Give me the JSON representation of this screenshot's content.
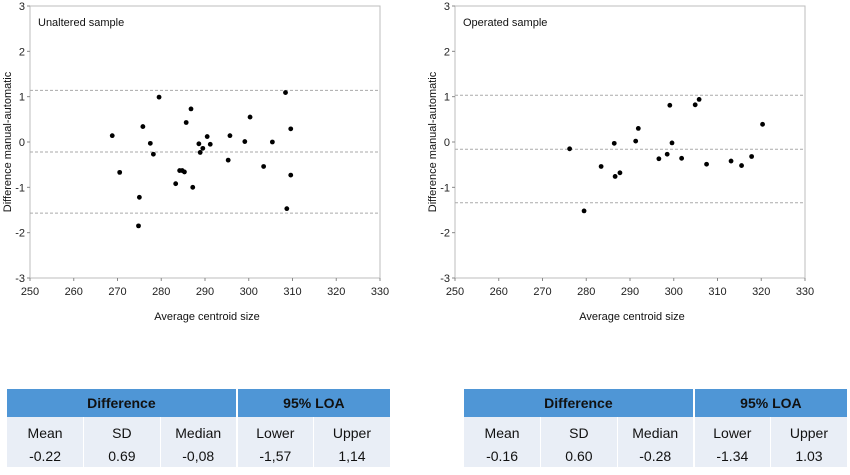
{
  "chart_data": [
    {
      "type": "scatter",
      "title": "Unaltered sample",
      "xlabel": "Average centroid size",
      "ylabel": "Difference manual-automatic",
      "xlim": [
        250,
        330
      ],
      "ylim": [
        -3,
        3
      ],
      "x_ticks": [
        250,
        260,
        270,
        280,
        290,
        300,
        310,
        320,
        330
      ],
      "y_ticks": [
        3,
        2,
        1,
        0,
        -1,
        -2,
        -3
      ],
      "reference_lines": [
        1.14,
        -0.22,
        -1.57
      ],
      "points": [
        [
          268.8,
          0.14
        ],
        [
          270.5,
          -0.67
        ],
        [
          274.8,
          -1.85
        ],
        [
          275.0,
          -1.22
        ],
        [
          275.8,
          0.34
        ],
        [
          277.5,
          -0.03
        ],
        [
          278.2,
          -0.27
        ],
        [
          279.5,
          0.99
        ],
        [
          283.3,
          -0.92
        ],
        [
          284.2,
          -0.63
        ],
        [
          284.8,
          -0.63
        ],
        [
          285.3,
          -0.66
        ],
        [
          285.7,
          0.43
        ],
        [
          286.8,
          0.73
        ],
        [
          287.2,
          -1.0
        ],
        [
          288.6,
          -0.04
        ],
        [
          288.9,
          -0.23
        ],
        [
          289.5,
          -0.14
        ],
        [
          290.5,
          0.12
        ],
        [
          291.2,
          -0.05
        ],
        [
          295.3,
          -0.4
        ],
        [
          295.7,
          0.14
        ],
        [
          299.1,
          0.01
        ],
        [
          300.3,
          0.55
        ],
        [
          303.4,
          -0.54
        ],
        [
          305.4,
          0.0
        ],
        [
          308.4,
          1.09
        ],
        [
          308.7,
          -1.47
        ],
        [
          309.6,
          0.29
        ],
        [
          309.6,
          -0.73
        ]
      ]
    },
    {
      "type": "scatter",
      "title": "Operated sample",
      "xlabel": "Average centroid size",
      "ylabel": "Difference manual-automatic",
      "xlim": [
        250,
        330
      ],
      "ylim": [
        -3,
        3
      ],
      "x_ticks": [
        250,
        260,
        270,
        280,
        290,
        300,
        310,
        320,
        330
      ],
      "y_ticks": [
        3,
        2,
        1,
        0,
        -1,
        -2,
        -3
      ],
      "reference_lines": [
        1.03,
        -0.16,
        -1.34
      ],
      "points": [
        [
          276.2,
          -0.15
        ],
        [
          279.5,
          -1.52
        ],
        [
          283.4,
          -0.54
        ],
        [
          286.4,
          -0.03
        ],
        [
          286.6,
          -0.76
        ],
        [
          287.7,
          -0.68
        ],
        [
          291.3,
          0.02
        ],
        [
          291.9,
          0.3
        ],
        [
          296.6,
          -0.37
        ],
        [
          298.5,
          -0.27
        ],
        [
          299.1,
          0.81
        ],
        [
          299.6,
          -0.02
        ],
        [
          301.8,
          -0.36
        ],
        [
          304.9,
          0.82
        ],
        [
          305.8,
          0.94
        ],
        [
          307.5,
          -0.49
        ],
        [
          313.1,
          -0.42
        ],
        [
          315.5,
          -0.52
        ],
        [
          317.8,
          -0.32
        ],
        [
          320.3,
          0.39
        ]
      ]
    }
  ],
  "tables": [
    {
      "header_difference": "Difference",
      "header_loa": "95% LOA",
      "labels": [
        "Mean",
        "SD",
        "Median",
        "Lower",
        "Upper"
      ],
      "values": [
        "-0.22",
        "0.69",
        "-0,08",
        "-1,57",
        "1,14"
      ]
    },
    {
      "header_difference": "Difference",
      "header_loa": "95% LOA",
      "labels": [
        "Mean",
        "SD",
        "Median",
        "Lower",
        "Upper"
      ],
      "values": [
        "-0.16",
        "0.60",
        "-0.28",
        "-1.34",
        "1.03"
      ]
    }
  ]
}
